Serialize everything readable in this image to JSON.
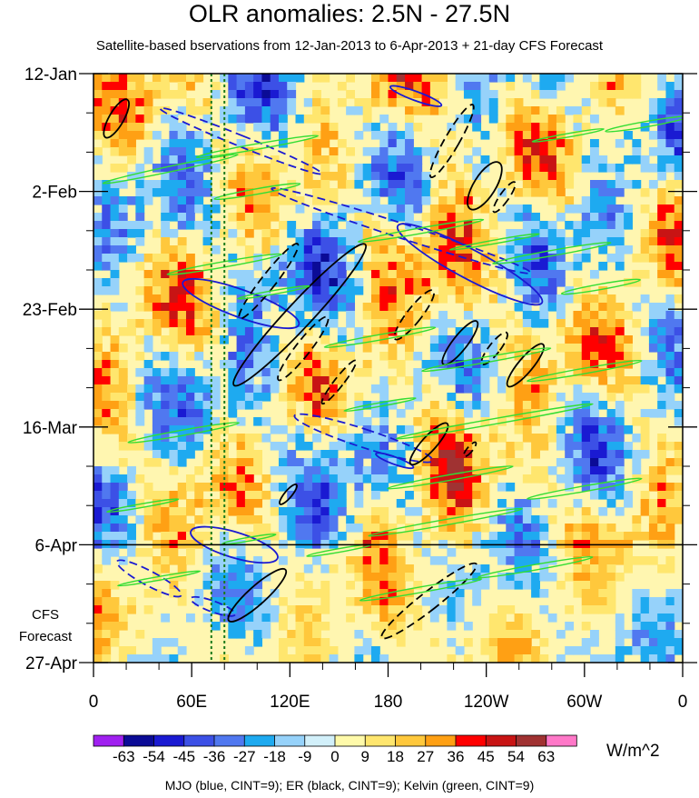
{
  "chart_data": {
    "type": "heatmap",
    "title": "OLR anomalies: 2.5N - 27.5N",
    "subtitle": "Satellite-based bservations from 12-Jan-2013 to 6-Apr-2013 + 21-day CFS Forecast",
    "x_ticks": [
      "0",
      "60E",
      "120E",
      "180",
      "120W",
      "60W",
      "0"
    ],
    "x_tick_lon": [
      0,
      60,
      120,
      180,
      240,
      300,
      360
    ],
    "y_ticks": [
      "12-Jan",
      "2-Feb",
      "23-Feb",
      "16-Mar",
      "6-Apr",
      "27-Apr"
    ],
    "y_tick_day": [
      0,
      21,
      42,
      63,
      84,
      105
    ],
    "forecast_label": [
      "CFS",
      "Forecast"
    ],
    "xlim": [
      0,
      360
    ],
    "ylim_days": [
      0,
      105
    ],
    "observation_end_day": 84,
    "reference_lines_lon": [
      72,
      80
    ],
    "colorbar": {
      "labels": [
        "-63",
        "-54",
        "-45",
        "-36",
        "-27",
        "-18",
        "-9",
        "0",
        "9",
        "18",
        "27",
        "36",
        "45",
        "54",
        "63"
      ],
      "colors": [
        "#a020f0",
        "#0b0b96",
        "#1a1ad2",
        "#3c50e6",
        "#5078f0",
        "#1eaaf0",
        "#96d2fa",
        "#d2f0fa",
        "#fffaaa",
        "#ffe66e",
        "#ffc83c",
        "#ffa014",
        "#ff0000",
        "#c81414",
        "#a03232",
        "#ff78c8"
      ]
    },
    "units": "W/m^2",
    "legend_note": "MJO (blue, CINT=9); ER (black, CINT=9); Kelvin (green, CINT=9)",
    "series": [
      {
        "name": "MJO",
        "color": "#1a1ad2",
        "contours": [
          {
            "lon": 90,
            "day": 12,
            "rx": 6,
            "ry": 96,
            "rot": -68,
            "neg": true
          },
          {
            "lon": 188,
            "day": 28,
            "rx": 8,
            "ry": 150,
            "rot": -72,
            "neg": true
          },
          {
            "lon": 230,
            "day": 34,
            "rx": 16,
            "ry": 90,
            "rot": -62,
            "neg": false
          },
          {
            "lon": 165,
            "day": 65,
            "rx": 10,
            "ry": 80,
            "rot": -72,
            "neg": true
          },
          {
            "lon": 90,
            "day": 41,
            "rx": 15,
            "ry": 68,
            "rot": -70,
            "neg": false
          },
          {
            "lon": 86,
            "day": 84,
            "rx": 14,
            "ry": 50,
            "rot": -73,
            "neg": false
          },
          {
            "lon": 34,
            "day": 90,
            "rx": 8,
            "ry": 40,
            "rot": -62,
            "neg": true
          },
          {
            "lon": 73,
            "day": 95,
            "rx": 6,
            "ry": 26,
            "rot": -70,
            "neg": true
          },
          {
            "lon": 197,
            "day": 4,
            "rx": 5,
            "ry": 30,
            "rot": -70,
            "neg": false
          },
          {
            "lon": 184,
            "day": 69,
            "rx": 4,
            "ry": 22,
            "rot": -70,
            "neg": false
          }
        ]
      },
      {
        "name": "ER",
        "color": "#000000",
        "contours": [
          {
            "lon": 14,
            "day": 8,
            "rx": 8,
            "ry": 24,
            "rot": 30,
            "neg": false
          },
          {
            "lon": 107,
            "day": 37,
            "rx": 8,
            "ry": 52,
            "rot": 38,
            "neg": true
          },
          {
            "lon": 126,
            "day": 43,
            "rx": 14,
            "ry": 106,
            "rot": 43,
            "neg": false
          },
          {
            "lon": 128,
            "day": 49,
            "rx": 8,
            "ry": 44,
            "rot": 38,
            "neg": true
          },
          {
            "lon": 150,
            "day": 55,
            "rx": 5,
            "ry": 30,
            "rot": 38,
            "neg": true
          },
          {
            "lon": 196,
            "day": 43,
            "rx": 8,
            "ry": 34,
            "rot": 38,
            "neg": true
          },
          {
            "lon": 219,
            "day": 12,
            "rx": 8,
            "ry": 46,
            "rot": 30,
            "neg": true
          },
          {
            "lon": 239,
            "day": 20,
            "rx": 12,
            "ry": 30,
            "rot": 32,
            "neg": false
          },
          {
            "lon": 251,
            "day": 22,
            "rx": 5,
            "ry": 20,
            "rot": 35,
            "neg": true
          },
          {
            "lon": 224,
            "day": 48,
            "rx": 8,
            "ry": 30,
            "rot": 38,
            "neg": false
          },
          {
            "lon": 245,
            "day": 49,
            "rx": 6,
            "ry": 22,
            "rot": 38,
            "neg": true
          },
          {
            "lon": 264,
            "day": 52,
            "rx": 8,
            "ry": 30,
            "rot": 40,
            "neg": false
          },
          {
            "lon": 205,
            "day": 66,
            "rx": 8,
            "ry": 30,
            "rot": 42,
            "neg": false
          },
          {
            "lon": 230,
            "day": 67,
            "rx": 3,
            "ry": 10,
            "rot": 40,
            "neg": true
          },
          {
            "lon": 119,
            "day": 75,
            "rx": 4,
            "ry": 14,
            "rot": 40,
            "neg": false
          },
          {
            "lon": 100,
            "day": 93,
            "rx": 10,
            "ry": 42,
            "rot": 48,
            "neg": false
          },
          {
            "lon": 205,
            "day": 94,
            "rx": 10,
            "ry": 66,
            "rot": 52,
            "neg": true
          }
        ]
      },
      {
        "name": "Kelvin",
        "color": "#33dd33",
        "contours": [
          {
            "lon": 47,
            "day": 17,
            "rx": 3,
            "ry": 76,
            "rot": 78
          },
          {
            "lon": 100,
            "day": 13,
            "rx": 3,
            "ry": 68,
            "rot": 80
          },
          {
            "lon": 100,
            "day": 21,
            "rx": 3,
            "ry": 48,
            "rot": 80
          },
          {
            "lon": 80,
            "day": 34,
            "rx": 3,
            "ry": 64,
            "rot": 80
          },
          {
            "lon": 110,
            "day": 39,
            "rx": 2,
            "ry": 40,
            "rot": 80
          },
          {
            "lon": 200,
            "day": 28,
            "rx": 3,
            "ry": 70,
            "rot": 80
          },
          {
            "lon": 245,
            "day": 30,
            "rx": 2,
            "ry": 50,
            "rot": 80
          },
          {
            "lon": 280,
            "day": 32,
            "rx": 3,
            "ry": 66,
            "rot": 80
          },
          {
            "lon": 310,
            "day": 38,
            "rx": 3,
            "ry": 44,
            "rot": 80
          },
          {
            "lon": 338,
            "day": 9,
            "rx": 3,
            "ry": 46,
            "rot": 80
          },
          {
            "lon": 290,
            "day": 11,
            "rx": 2,
            "ry": 40,
            "rot": 80
          },
          {
            "lon": 175,
            "day": 47,
            "rx": 3,
            "ry": 62,
            "rot": 80
          },
          {
            "lon": 240,
            "day": 51,
            "rx": 3,
            "ry": 72,
            "rot": 80
          },
          {
            "lon": 300,
            "day": 53,
            "rx": 3,
            "ry": 64,
            "rot": 80
          },
          {
            "lon": 245,
            "day": 62,
            "rx": 3,
            "ry": 110,
            "rot": 80
          },
          {
            "lon": 175,
            "day": 59,
            "rx": 2,
            "ry": 40,
            "rot": 80
          },
          {
            "lon": 218,
            "day": 72,
            "rx": 3,
            "ry": 70,
            "rot": 80
          },
          {
            "lon": 300,
            "day": 74,
            "rx": 3,
            "ry": 64,
            "rot": 80
          },
          {
            "lon": 215,
            "day": 80,
            "rx": 3,
            "ry": 86,
            "rot": 80
          },
          {
            "lon": 55,
            "day": 64,
            "rx": 3,
            "ry": 62,
            "rot": 80
          },
          {
            "lon": 30,
            "day": 77,
            "rx": 2,
            "ry": 40,
            "rot": 80
          },
          {
            "lon": 40,
            "day": 90,
            "rx": 2,
            "ry": 46,
            "rot": 80
          },
          {
            "lon": 95,
            "day": 83,
            "rx": 2,
            "ry": 30,
            "rot": 80
          },
          {
            "lon": 200,
            "day": 92,
            "rx": 3,
            "ry": 68,
            "rot": 80
          },
          {
            "lon": 270,
            "day": 88,
            "rx": 3,
            "ry": 64,
            "rot": 80
          },
          {
            "lon": 150,
            "day": 85,
            "rx": 2,
            "ry": 36,
            "rot": 80
          }
        ]
      }
    ]
  }
}
